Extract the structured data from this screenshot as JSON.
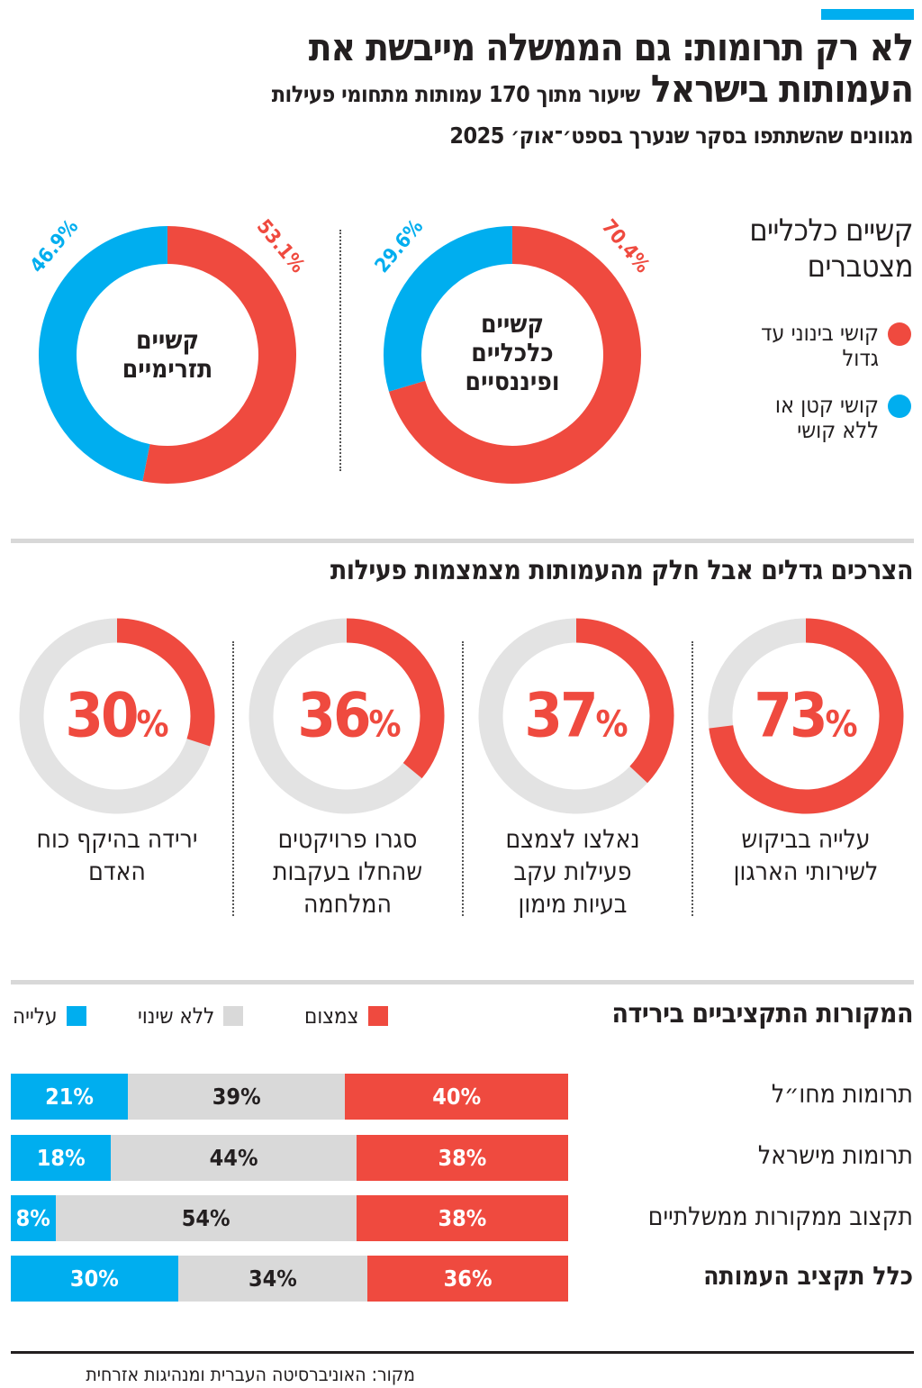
{
  "header": {
    "title_line1": "לא רק תרומות: גם הממשלה מייבשת את",
    "title_line2": "העמותות בישראל",
    "subtitle_inline": "שיעור מתוך 170 עמותות מתחומי פעילות",
    "subtitle_line2": "מגוונים שהשתתפו בסקר שנערך בספט׳־אוק׳ 2025"
  },
  "colors": {
    "red": "#ef4a3f",
    "blue": "#00aeef",
    "gray": "#d9d9d9",
    "light_gray": "#e3e3e3"
  },
  "chart_data": [
    {
      "type": "pie",
      "title": "קשיים כלכליים מצטברים",
      "legend": [
        {
          "label": "קושי בינוני עד גדול",
          "color": "#ef4a3f"
        },
        {
          "label": "קושי קטן או ללא קושי",
          "color": "#00aeef"
        }
      ],
      "donuts": [
        {
          "label": "קשיים כלכליים ופיננסיים",
          "slices": [
            {
              "value": 70.4,
              "label": "70.4%",
              "color": "#ef4a3f"
            },
            {
              "value": 29.6,
              "label": "29.6%",
              "color": "#00aeef"
            }
          ]
        },
        {
          "label": "קשיים תזרימיים",
          "slices": [
            {
              "value": 53.1,
              "label": "53.1%",
              "color": "#ef4a3f"
            },
            {
              "value": 46.9,
              "label": "46.9%",
              "color": "#00aeef"
            }
          ]
        }
      ]
    },
    {
      "type": "pie",
      "title": "הצרכים גדלים אבל חלק מהעמותות מצמצמות פעילות",
      "items": [
        {
          "value": 73,
          "number": "73",
          "unit": "%",
          "caption": "עלייה בביקוש לשירותי הארגון"
        },
        {
          "value": 37,
          "number": "37",
          "unit": "%",
          "caption": "נאלצו לצמצם פעילות עקב בעיות מימון"
        },
        {
          "value": 36,
          "number": "36",
          "unit": "%",
          "caption": "סגרו פרויקטים שהחלו בעקבות המלחמה"
        },
        {
          "value": 30,
          "number": "30",
          "unit": "%",
          "caption": "ירידה בהיקף כוח האדם"
        }
      ]
    },
    {
      "type": "bar",
      "stacked": true,
      "orientation": "horizontal",
      "title": "המקורות התקציביים בירידה",
      "legend": [
        {
          "name": "צמצום",
          "color": "#ef4a3f"
        },
        {
          "name": "ללא שינוי",
          "color": "#d9d9d9"
        },
        {
          "name": "עלייה",
          "color": "#00aeef"
        }
      ],
      "categories": [
        "תרומות מחו״ל",
        "תרומות מישראל",
        "תקצוב ממקורות ממשלתיים",
        "כלל תקציב העמותה"
      ],
      "series": [
        {
          "name": "עלייה",
          "values": [
            21,
            18,
            8,
            30
          ],
          "labels": [
            "21%",
            "18%",
            "8%",
            "30%"
          ]
        },
        {
          "name": "ללא שינוי",
          "values": [
            39,
            44,
            54,
            34
          ],
          "labels": [
            "39%",
            "44%",
            "54%",
            "34%"
          ]
        },
        {
          "name": "צמצום",
          "values": [
            40,
            38,
            38,
            36
          ],
          "labels": [
            "40%",
            "38%",
            "38%",
            "36%"
          ]
        }
      ]
    }
  ],
  "footer": {
    "source": "מקור: האוניברסיטה העברית ומנהיגות אזרחית"
  }
}
